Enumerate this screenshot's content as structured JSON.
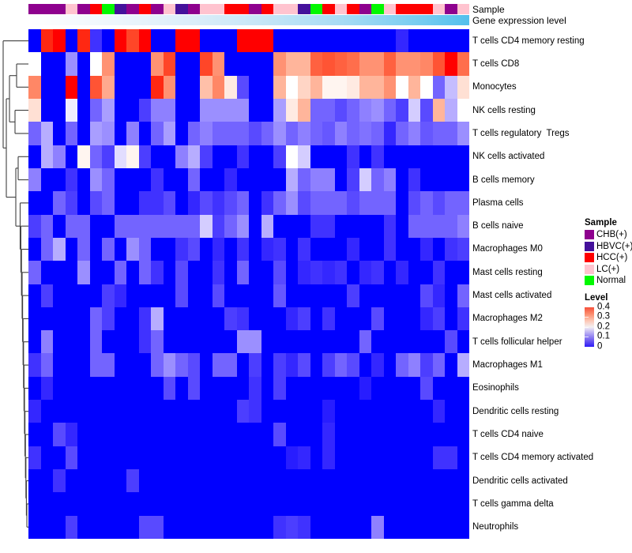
{
  "annotation": {
    "sample_bar_label": "Sample",
    "gene_bar_label": "Gene expression level",
    "sample_groups": [
      "CHB",
      "CHB",
      "CHB",
      "LC",
      "CHB",
      "HCC",
      "Normal",
      "HBVC",
      "CHB",
      "HCC",
      "CHB",
      "LC",
      "HBVC",
      "CHB",
      "LC",
      "LC",
      "HCC",
      "HCC",
      "CHB",
      "HCC",
      "LC",
      "LC",
      "HBVC",
      "Normal",
      "HCC",
      "LC",
      "HCC",
      "CHB",
      "Normal",
      "LC",
      "HCC",
      "HCC",
      "HCC",
      "LC",
      "CHB",
      "LC"
    ],
    "group_colors": {
      "CHB": "#8E018E",
      "HBVC": "#44119B",
      "HCC": "#FE0000",
      "LC": "#FFC3CF",
      "Normal": "#01F800"
    },
    "gene_gradient": {
      "stops": [
        "#FFFFFF",
        "#EDF6FC",
        "#D2EAF8",
        "#A9DCF4",
        "#73CBF0",
        "#53BFEC"
      ],
      "positions": [
        "0%",
        "20%",
        "45%",
        "70%",
        "90%",
        "100%"
      ]
    }
  },
  "legend": {
    "sample_title": "Sample",
    "sample_items": [
      {
        "label": "CHB(+)",
        "color": "#8E018E"
      },
      {
        "label": "HBVC(+)",
        "color": "#44119B"
      },
      {
        "label": "HCC(+)",
        "color": "#FE0000"
      },
      {
        "label": "LC(+)",
        "color": "#FFC3CF"
      },
      {
        "label": "Normal",
        "color": "#01F800"
      }
    ],
    "level_title": "Level",
    "level_ticks": [
      "0.4",
      "0.3",
      "0.2",
      "0.1",
      "0"
    ],
    "level_gradient": {
      "stops": [
        "#F6503A",
        "#FB8A6B",
        "#FDC4B0",
        "#F4F0F3",
        "#AFA3F3",
        "#6F5BF0",
        "#2D1BF7"
      ],
      "positions": [
        "0%",
        "16%",
        "33%",
        "50%",
        "67%",
        "84%",
        "100%"
      ]
    }
  },
  "chart_data": {
    "type": "heatmap",
    "title": "",
    "xlabel": "",
    "ylabel": "",
    "value_range": [
      0,
      0.4
    ],
    "colormap": "blue-white-red",
    "grid": false,
    "legend_position": "right",
    "rows": [
      "T cells CD4 memory resting",
      "T cells CD8",
      "Monocytes",
      "NK cells resting",
      "T cells regulatory  Tregs",
      "NK cells activated",
      "B cells memory",
      "Plasma cells",
      "B cells naive",
      "Macrophages M0",
      "Mast cells resting",
      "Mast cells activated",
      "Macrophages M2",
      "T cells follicular helper",
      "Macrophages M1",
      "Eosinophils",
      "Dendritic cells resting",
      "T cells CD4 naive",
      "T cells CD4 memory activated",
      "Dendritic cells activated",
      "T cells gamma delta",
      "Neutrophils"
    ],
    "columns_sample_group": [
      "CHB",
      "CHB",
      "CHB",
      "LC",
      "CHB",
      "HCC",
      "Normal",
      "HBVC",
      "CHB",
      "HCC",
      "CHB",
      "LC",
      "HBVC",
      "CHB",
      "LC",
      "LC",
      "HCC",
      "HCC",
      "CHB",
      "HCC",
      "LC",
      "LC",
      "HBVC",
      "Normal",
      "HCC",
      "LC",
      "HCC",
      "CHB",
      "Normal",
      "LC",
      "HCC",
      "HCC",
      "HCC",
      "LC",
      "CHB",
      "LC"
    ],
    "values": [
      [
        0,
        0.38,
        0.42,
        0,
        0.38,
        0.06,
        0,
        0.42,
        0.36,
        0.42,
        0,
        0,
        0.42,
        0.42,
        0,
        0,
        0,
        0.42,
        0.42,
        0.42,
        0,
        0,
        0,
        0,
        0,
        0,
        0,
        0,
        0,
        0,
        0.05,
        0,
        0,
        0,
        0,
        0
      ],
      [
        0.2,
        0,
        0,
        0.13,
        0,
        0.2,
        0.3,
        0,
        0,
        0,
        0.3,
        0.36,
        0,
        0,
        0.36,
        0.3,
        0,
        0,
        0,
        0,
        0.3,
        0.27,
        0.27,
        0.34,
        0.35,
        0.34,
        0.33,
        0.3,
        0.3,
        0.34,
        0.3,
        0.3,
        0.31,
        0.35,
        0.42,
        0.33
      ],
      [
        0.31,
        0,
        0,
        0.42,
        0,
        0.35,
        0.28,
        0,
        0,
        0,
        0.38,
        0.3,
        0,
        0,
        0.26,
        0.31,
        0.22,
        0.08,
        0,
        0,
        0.27,
        0.2,
        0.24,
        0.27,
        0.21,
        0.21,
        0.22,
        0.27,
        0.27,
        0.3,
        0.2,
        0.27,
        0.2,
        0.1,
        0.16,
        0.23
      ],
      [
        0.23,
        0,
        0,
        0.19,
        0,
        0.1,
        0.14,
        0,
        0,
        0.07,
        0.12,
        0.12,
        0,
        0,
        0.13,
        0.13,
        0.13,
        0.13,
        0,
        0,
        0.14,
        0.22,
        0.27,
        0.1,
        0.1,
        0.08,
        0.1,
        0.12,
        0.13,
        0.1,
        0.07,
        0.17,
        0.08,
        0.27,
        0.15,
        0.2
      ],
      [
        0.1,
        0.15,
        0,
        0.1,
        0,
        0.14,
        0.13,
        0,
        0.12,
        0,
        0.1,
        0.14,
        0,
        0.1,
        0.12,
        0.1,
        0.1,
        0.1,
        0.08,
        0.1,
        0.13,
        0.1,
        0.12,
        0.1,
        0.09,
        0.12,
        0.1,
        0.11,
        0.1,
        0.05,
        0.1,
        0.12,
        0.09,
        0.1,
        0.1,
        0.13
      ],
      [
        0,
        0.15,
        0.12,
        0,
        0.21,
        0.1,
        0.07,
        0.18,
        0.21,
        0.07,
        0,
        0,
        0.12,
        0.15,
        0.07,
        0,
        0,
        0.06,
        0,
        0,
        0.07,
        0.2,
        0.17,
        0,
        0,
        0,
        0.06,
        0,
        0.06,
        0,
        0,
        0,
        0,
        0,
        0,
        0
      ],
      [
        0.12,
        0,
        0,
        0.06,
        0,
        0.13,
        0.1,
        0,
        0,
        0,
        0.06,
        0,
        0,
        0.1,
        0,
        0,
        0.05,
        0,
        0,
        0,
        0,
        0.15,
        0.1,
        0.12,
        0.12,
        0,
        0.07,
        0.17,
        0.1,
        0.12,
        0,
        0.06,
        0,
        0,
        0,
        0
      ],
      [
        0,
        0,
        0.1,
        0.07,
        0,
        0.08,
        0.1,
        0,
        0,
        0.06,
        0.06,
        0.08,
        0,
        0.05,
        0.08,
        0.06,
        0.08,
        0.1,
        0,
        0.06,
        0.1,
        0.13,
        0.08,
        0.1,
        0.1,
        0.1,
        0.08,
        0.1,
        0.1,
        0.1,
        0,
        0.08,
        0.1,
        0.08,
        0.1,
        0.1
      ],
      [
        0.07,
        0.1,
        0,
        0.1,
        0.1,
        0,
        0,
        0.1,
        0.1,
        0.1,
        0.1,
        0.1,
        0.1,
        0.1,
        0.17,
        0.07,
        0.1,
        0.13,
        0,
        0.15,
        0,
        0,
        0,
        0.06,
        0.06,
        0,
        0,
        0,
        0,
        0.06,
        0,
        0.1,
        0.1,
        0.1,
        0.1,
        0.12
      ],
      [
        0,
        0.1,
        0.15,
        0,
        0.1,
        0,
        0.1,
        0,
        0.13,
        0.1,
        0,
        0,
        0.06,
        0.08,
        0,
        0.05,
        0,
        0.06,
        0,
        0.05,
        0.06,
        0,
        0.06,
        0,
        0,
        0,
        0.05,
        0,
        0,
        0.06,
        0,
        0,
        0.05,
        0,
        0.06,
        0.07
      ],
      [
        0.1,
        0,
        0,
        0,
        0.13,
        0,
        0,
        0.1,
        0,
        0.1,
        0.06,
        0,
        0.08,
        0,
        0,
        0.06,
        0,
        0.1,
        0,
        0,
        0.08,
        0,
        0.05,
        0.06,
        0.05,
        0.06,
        0,
        0.05,
        0.06,
        0,
        0.05,
        0,
        0,
        0.06,
        0,
        0
      ],
      [
        0,
        0.07,
        0,
        0,
        0,
        0,
        0.07,
        0.05,
        0,
        0,
        0,
        0,
        0.08,
        0,
        0,
        0.08,
        0,
        0,
        0,
        0,
        0.09,
        0,
        0,
        0,
        0,
        0,
        0.07,
        0,
        0,
        0,
        0,
        0,
        0.08,
        0.05,
        0,
        0.1
      ],
      [
        0,
        0,
        0,
        0,
        0,
        0.1,
        0.07,
        0,
        0,
        0.06,
        0.15,
        0,
        0,
        0,
        0,
        0,
        0.07,
        0.06,
        0,
        0,
        0,
        0.05,
        0.07,
        0,
        0.06,
        0,
        0,
        0,
        0.08,
        0,
        0,
        0,
        0.05,
        0.07,
        0,
        0.06
      ],
      [
        0,
        0.12,
        0,
        0,
        0,
        0.1,
        0,
        0,
        0,
        0.06,
        0.1,
        0,
        0,
        0,
        0,
        0,
        0,
        0.13,
        0.13,
        0,
        0,
        0,
        0,
        0,
        0,
        0,
        0,
        0.1,
        0,
        0,
        0,
        0,
        0,
        0,
        0.08,
        0
      ],
      [
        0.06,
        0.1,
        0,
        0,
        0,
        0.1,
        0.1,
        0,
        0,
        0,
        0.1,
        0.13,
        0.1,
        0.08,
        0,
        0.1,
        0.1,
        0,
        0.07,
        0,
        0.07,
        0.05,
        0.08,
        0,
        0.07,
        0.1,
        0.08,
        0,
        0.05,
        0,
        0.1,
        0.12,
        0.07,
        0.1,
        0,
        0.15
      ],
      [
        0,
        0.05,
        0,
        0,
        0,
        0,
        0,
        0,
        0,
        0,
        0,
        0.08,
        0,
        0.08,
        0,
        0,
        0,
        0,
        0.06,
        0,
        0.07,
        0,
        0,
        0,
        0,
        0,
        0,
        0.04,
        0,
        0,
        0,
        0,
        0.08,
        0,
        0,
        0
      ],
      [
        0.05,
        0,
        0,
        0,
        0,
        0,
        0,
        0,
        0,
        0,
        0,
        0,
        0,
        0,
        0,
        0,
        0,
        0.07,
        0.06,
        0,
        0,
        0,
        0,
        0,
        0.04,
        0,
        0,
        0,
        0,
        0,
        0,
        0,
        0,
        0.05,
        0,
        0
      ],
      [
        0,
        0,
        0.08,
        0.05,
        0,
        0,
        0,
        0,
        0,
        0,
        0,
        0,
        0,
        0,
        0,
        0,
        0,
        0,
        0,
        0,
        0.08,
        0,
        0,
        0,
        0.05,
        0,
        0,
        0,
        0,
        0,
        0,
        0,
        0,
        0,
        0,
        0
      ],
      [
        0.06,
        0,
        0,
        0.08,
        0,
        0,
        0,
        0,
        0,
        0,
        0,
        0,
        0,
        0,
        0,
        0,
        0,
        0,
        0,
        0,
        0,
        0.04,
        0.05,
        0,
        0.05,
        0,
        0,
        0,
        0,
        0,
        0,
        0,
        0,
        0.06,
        0.06,
        0
      ],
      [
        0,
        0,
        0.06,
        0,
        0,
        0,
        0,
        0,
        0.07,
        0,
        0,
        0,
        0,
        0,
        0,
        0,
        0,
        0,
        0,
        0,
        0,
        0,
        0,
        0,
        0,
        0,
        0,
        0,
        0,
        0,
        0,
        0,
        0,
        0,
        0,
        0
      ],
      [
        0,
        0,
        0,
        0,
        0,
        0,
        0,
        0,
        0,
        0,
        0,
        0,
        0,
        0,
        0,
        0,
        0,
        0,
        0,
        0,
        0,
        0,
        0,
        0,
        0,
        0,
        0,
        0,
        0,
        0,
        0,
        0,
        0,
        0,
        0,
        0
      ],
      [
        0,
        0,
        0,
        0.07,
        0,
        0,
        0,
        0,
        0,
        0.08,
        0.08,
        0,
        0,
        0,
        0,
        0,
        0,
        0,
        0,
        0,
        0.06,
        0.07,
        0.06,
        0,
        0,
        0,
        0,
        0,
        0.12,
        0,
        0,
        0,
        0,
        0,
        0,
        0
      ]
    ]
  },
  "dendrogram": {
    "segments": [
      [
        36,
        44,
        21,
        44
      ],
      [
        36,
        73.3,
        21,
        73.3
      ],
      [
        21,
        44,
        21,
        73.3
      ],
      [
        36,
        102.6,
        19,
        102.6
      ],
      [
        36,
        131.9,
        19,
        131.9
      ],
      [
        19,
        102.6,
        19,
        131.9
      ],
      [
        21,
        58.7,
        12,
        58.7
      ],
      [
        19,
        117.3,
        12,
        117.3
      ],
      [
        12,
        58.7,
        12,
        117.3
      ],
      [
        36,
        161.3,
        23,
        161.3
      ],
      [
        36,
        190.6,
        23,
        190.6
      ],
      [
        23,
        161.3,
        23,
        190.6
      ],
      [
        36,
        600.9,
        34,
        600.9
      ],
      [
        36,
        630.2,
        34,
        630.2
      ],
      [
        34,
        600.9,
        34,
        630.2
      ],
      [
        36,
        571.6,
        33.4,
        571.6
      ],
      [
        34,
        615.6,
        33.4,
        615.6
      ],
      [
        33.4,
        571.6,
        33.4,
        615.6
      ],
      [
        36,
        542.3,
        32.8,
        542.3
      ],
      [
        33.4,
        593.6,
        32.8,
        593.6
      ],
      [
        32.8,
        542.3,
        32.8,
        593.6
      ],
      [
        36,
        513,
        32.2,
        513
      ],
      [
        32.8,
        568,
        32.2,
        568
      ],
      [
        32.2,
        513,
        32.2,
        568
      ],
      [
        36,
        483.7,
        31.6,
        483.7
      ],
      [
        32.2,
        540.5,
        31.6,
        540.5
      ],
      [
        31.6,
        483.7,
        31.6,
        540.5
      ],
      [
        36,
        454.4,
        31,
        454.4
      ],
      [
        31.6,
        512.1,
        31,
        512.1
      ],
      [
        31,
        454.4,
        31,
        512.1
      ],
      [
        36,
        425.1,
        30.4,
        425.1
      ],
      [
        31,
        483.3,
        30.4,
        483.3
      ],
      [
        30.4,
        425.1,
        30.4,
        483.3
      ],
      [
        36,
        395.7,
        29.8,
        395.7
      ],
      [
        30.4,
        454.2,
        29.8,
        454.2
      ],
      [
        29.8,
        395.7,
        29.8,
        454.2
      ],
      [
        36,
        366.4,
        29.2,
        366.4
      ],
      [
        29.8,
        425,
        29.2,
        425
      ],
      [
        29.2,
        366.4,
        29.2,
        425
      ],
      [
        36,
        337.1,
        28.6,
        337.1
      ],
      [
        29.2,
        395.7,
        28.6,
        395.7
      ],
      [
        28.6,
        337.1,
        28.6,
        395.7
      ],
      [
        36,
        307.8,
        28,
        307.8
      ],
      [
        28.6,
        366.4,
        28,
        366.4
      ],
      [
        28,
        307.8,
        28,
        366.4
      ],
      [
        36,
        278.5,
        27.2,
        278.5
      ],
      [
        28,
        337.1,
        27.2,
        337.1
      ],
      [
        27.2,
        278.5,
        27.2,
        337.1
      ],
      [
        36,
        249.2,
        26.4,
        249.2
      ],
      [
        27.2,
        307.8,
        26.4,
        307.8
      ],
      [
        26.4,
        249.2,
        26.4,
        307.8
      ],
      [
        36,
        219.9,
        25.5,
        219.9
      ],
      [
        26.4,
        278.5,
        25.5,
        278.5
      ],
      [
        25.5,
        219.9,
        25.5,
        278.5
      ],
      [
        23,
        175.9,
        20,
        175.9
      ],
      [
        25.5,
        249.2,
        20,
        249.2
      ],
      [
        20,
        175.9,
        20,
        249.2
      ],
      [
        12,
        88,
        8,
        88
      ],
      [
        20,
        212.6,
        8,
        212.6
      ],
      [
        8,
        88,
        8,
        212.6
      ],
      [
        36,
        14.7,
        4,
        14.7
      ],
      [
        8,
        150.3,
        4,
        150.3
      ],
      [
        4,
        14.7,
        4,
        150.3
      ]
    ],
    "line_color": "#3F3F3F"
  }
}
